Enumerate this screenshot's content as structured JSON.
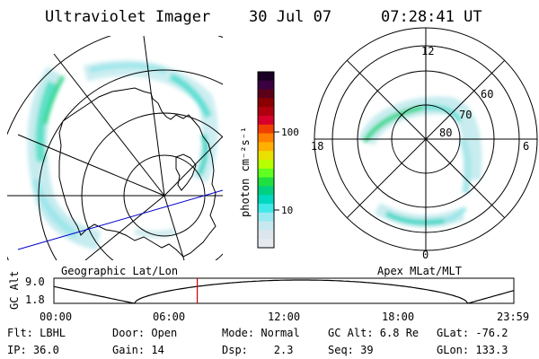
{
  "header": {
    "title": "Ultraviolet Imager",
    "date": "30 Jul 07",
    "time": "07:28:41 UT"
  },
  "geo_panel": {
    "label": "Geographic Lat/Lon"
  },
  "apex_panel": {
    "label": "Apex MLat/MLT",
    "mlt_labels": {
      "top": "12",
      "left": "18",
      "right": "6",
      "bottom": "0"
    },
    "mlat_labels": [
      "80",
      "70",
      "60"
    ]
  },
  "colorbar": {
    "unit_label": "photon cm⁻²s⁻¹",
    "ticks": [
      "100",
      "10"
    ],
    "colors": [
      "#1a0022",
      "#3a0040",
      "#5a0018",
      "#8b0000",
      "#b00010",
      "#d8002a",
      "#f04000",
      "#ff8000",
      "#ffb000",
      "#e8e000",
      "#b8ff00",
      "#60ff20",
      "#20e040",
      "#00d080",
      "#00d8c0",
      "#40e8e8",
      "#9ae8f0",
      "#c8e8f0",
      "#dde6ec",
      "#e6eaee"
    ]
  },
  "altitude_plot": {
    "ylabel": "GC Alt",
    "yticks": [
      "9.0",
      "1.8"
    ],
    "xticks": [
      "00:00",
      "06:00",
      "12:00",
      "18:00",
      "23:59"
    ],
    "current_time_hours": 7.48
  },
  "status": {
    "filter": "Flt: LBHL",
    "ip": "IP: 36.0",
    "door": "Door: Open",
    "gain": "Gain: 14",
    "mode": "Mode: Normal",
    "dsp": "Dsp:    2.3",
    "gc_alt": "GC Alt: 6.8 Re",
    "seq": "Seq: 39",
    "glat": "GLat: -76.2",
    "glon": "GLon: 133.3"
  }
}
